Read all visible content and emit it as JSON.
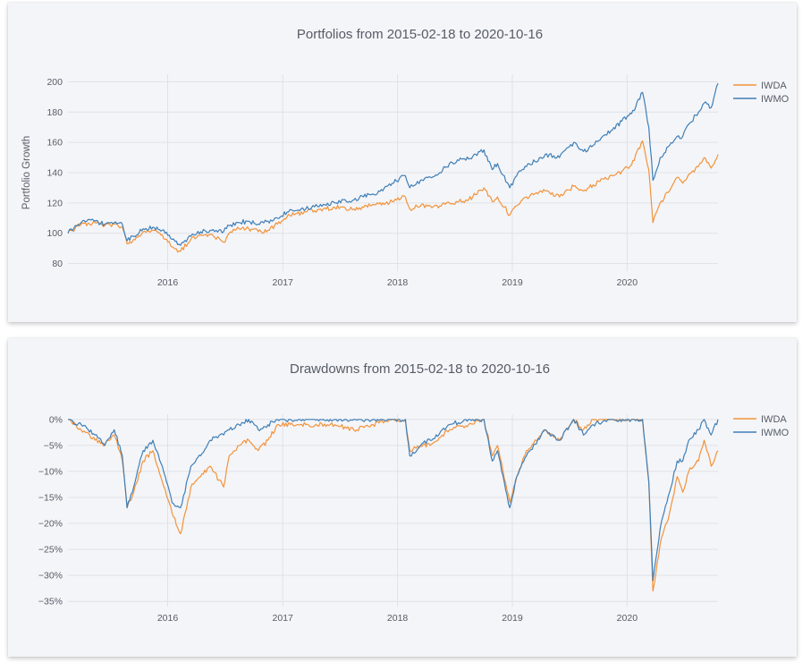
{
  "colors": {
    "IWDA": "#f2933a",
    "IWMO": "#3f7fb7",
    "card_bg": "#f4f5f8",
    "grid": "#dfe2e8",
    "text": "#555b66"
  },
  "chart_data": [
    {
      "type": "line",
      "title": "Portfolios from 2015-02-18 to 2020-10-16",
      "xlabel": "",
      "ylabel": "Portfolio Growth",
      "x_axis_type": "date",
      "xlim": [
        "2015-02-18",
        "2020-10-16"
      ],
      "ylim": [
        75,
        205
      ],
      "x_ticks": [
        "2016",
        "2017",
        "2018",
        "2019",
        "2020"
      ],
      "y_ticks": [
        80,
        100,
        120,
        140,
        160,
        180,
        200
      ],
      "grid": true,
      "legend": "top-right",
      "series": [
        {
          "name": "IWDA",
          "x": [
            "2015-02-18",
            "2015-04-01",
            "2015-05-15",
            "2015-06-15",
            "2015-07-15",
            "2015-08-10",
            "2015-08-25",
            "2015-09-15",
            "2015-10-15",
            "2015-11-15",
            "2015-12-15",
            "2016-01-15",
            "2016-02-11",
            "2016-03-15",
            "2016-04-15",
            "2016-05-15",
            "2016-06-27",
            "2016-07-15",
            "2016-08-15",
            "2016-09-15",
            "2016-10-15",
            "2016-11-15",
            "2016-12-15",
            "2017-01-15",
            "2017-02-15",
            "2017-03-15",
            "2017-05-01",
            "2017-06-15",
            "2017-08-15",
            "2017-09-15",
            "2017-10-15",
            "2017-11-15",
            "2017-12-15",
            "2018-01-26",
            "2018-02-09",
            "2018-03-15",
            "2018-04-15",
            "2018-05-15",
            "2018-06-15",
            "2018-07-15",
            "2018-08-15",
            "2018-10-03",
            "2018-10-29",
            "2018-11-15",
            "2018-12-24",
            "2019-01-15",
            "2019-02-15",
            "2019-04-15",
            "2019-05-31",
            "2019-07-15",
            "2019-08-15",
            "2019-09-15",
            "2019-10-15",
            "2019-11-15",
            "2019-12-15",
            "2020-01-15",
            "2020-02-19",
            "2020-03-10",
            "2020-03-23",
            "2020-04-15",
            "2020-05-15",
            "2020-06-08",
            "2020-06-26",
            "2020-07-15",
            "2020-08-15",
            "2020-09-02",
            "2020-09-24",
            "2020-10-16"
          ],
          "y": [
            100,
            106,
            107,
            105,
            106,
            104,
            93,
            96,
            101,
            102,
            99,
            91,
            88,
            96,
            99,
            99,
            94,
            100,
            103,
            103,
            101,
            102,
            106,
            111,
            113,
            114,
            116,
            117,
            116,
            117,
            119,
            120,
            121,
            124,
            116,
            118,
            118,
            118,
            120,
            121,
            122,
            130,
            121,
            124,
            112,
            118,
            124,
            128,
            124,
            131,
            128,
            132,
            136,
            138,
            141,
            145,
            161,
            142,
            107,
            120,
            128,
            137,
            133,
            139,
            144,
            150,
            143,
            152
          ]
        },
        {
          "name": "IWMO",
          "x": [
            "2015-02-18",
            "2015-04-01",
            "2015-05-15",
            "2015-06-15",
            "2015-07-15",
            "2015-08-10",
            "2015-08-25",
            "2015-09-15",
            "2015-10-15",
            "2015-11-15",
            "2015-12-15",
            "2016-01-15",
            "2016-02-11",
            "2016-03-15",
            "2016-04-15",
            "2016-05-15",
            "2016-06-27",
            "2016-07-15",
            "2016-08-15",
            "2016-09-15",
            "2016-10-15",
            "2016-11-15",
            "2016-12-15",
            "2017-01-15",
            "2017-02-15",
            "2017-03-15",
            "2017-05-01",
            "2017-06-15",
            "2017-08-15",
            "2017-09-15",
            "2017-10-15",
            "2017-11-15",
            "2017-12-15",
            "2018-01-26",
            "2018-02-09",
            "2018-03-15",
            "2018-04-15",
            "2018-05-15",
            "2018-06-15",
            "2018-07-15",
            "2018-08-15",
            "2018-10-03",
            "2018-10-29",
            "2018-11-15",
            "2018-12-24",
            "2019-01-15",
            "2019-02-15",
            "2019-04-15",
            "2019-05-31",
            "2019-07-15",
            "2019-08-15",
            "2019-09-15",
            "2019-10-15",
            "2019-11-15",
            "2019-12-15",
            "2020-01-15",
            "2020-02-19",
            "2020-03-10",
            "2020-03-23",
            "2020-04-15",
            "2020-05-15",
            "2020-06-08",
            "2020-06-26",
            "2020-07-15",
            "2020-08-15",
            "2020-09-02",
            "2020-09-24",
            "2020-10-16"
          ],
          "y": [
            100,
            107,
            108,
            106,
            107,
            106,
            95,
            98,
            103,
            104,
            102,
            96,
            92,
            98,
            101,
            102,
            101,
            105,
            107,
            108,
            106,
            108,
            110,
            114,
            115,
            116,
            119,
            120,
            122,
            124,
            126,
            128,
            133,
            138,
            130,
            135,
            137,
            140,
            146,
            148,
            149,
            155,
            142,
            146,
            130,
            138,
            144,
            152,
            150,
            160,
            154,
            158,
            164,
            168,
            174,
            179,
            193,
            170,
            135,
            150,
            158,
            164,
            164,
            172,
            180,
            186,
            183,
            199
          ]
        }
      ]
    },
    {
      "type": "line",
      "title": "Drawdowns from 2015-02-18 to 2020-10-16",
      "xlabel": "",
      "ylabel": "",
      "x_axis_type": "date",
      "xlim": [
        "2015-02-18",
        "2020-10-16"
      ],
      "ylim": [
        -36,
        1
      ],
      "y_unit": "percent",
      "x_ticks": [
        "2016",
        "2017",
        "2018",
        "2019",
        "2020"
      ],
      "y_ticks": [
        0,
        -5,
        -10,
        -15,
        -20,
        -25,
        -30,
        -35
      ],
      "y_tick_labels": [
        "0%",
        "−5%",
        "−10%",
        "−15%",
        "−20%",
        "−25%",
        "−30%",
        "−35%"
      ],
      "grid": true,
      "legend": "top-right",
      "series": [
        {
          "name": "IWDA",
          "x": [
            "2015-02-18",
            "2015-03-15",
            "2015-04-01",
            "2015-05-15",
            "2015-06-15",
            "2015-07-15",
            "2015-08-10",
            "2015-08-25",
            "2015-09-15",
            "2015-10-15",
            "2015-11-15",
            "2015-12-15",
            "2016-01-15",
            "2016-02-11",
            "2016-03-15",
            "2016-04-15",
            "2016-05-15",
            "2016-06-27",
            "2016-07-15",
            "2016-08-15",
            "2016-09-15",
            "2016-10-15",
            "2016-11-15",
            "2016-12-15",
            "2017-03-15",
            "2017-06-15",
            "2017-08-15",
            "2017-10-15",
            "2017-12-15",
            "2018-01-26",
            "2018-02-09",
            "2018-03-15",
            "2018-04-15",
            "2018-06-15",
            "2018-08-15",
            "2018-10-03",
            "2018-10-29",
            "2018-11-15",
            "2018-12-24",
            "2019-01-15",
            "2019-02-15",
            "2019-04-15",
            "2019-05-31",
            "2019-07-15",
            "2019-08-15",
            "2019-09-15",
            "2019-11-15",
            "2020-01-15",
            "2020-02-19",
            "2020-03-10",
            "2020-03-23",
            "2020-04-15",
            "2020-05-15",
            "2020-06-08",
            "2020-06-26",
            "2020-07-15",
            "2020-08-15",
            "2020-09-02",
            "2020-09-24",
            "2020-10-16"
          ],
          "y": [
            0,
            -1,
            -2,
            -4,
            -5,
            -3,
            -8,
            -17,
            -14,
            -8,
            -6,
            -12,
            -18,
            -22,
            -13,
            -11,
            -9,
            -13,
            -7,
            -5,
            -4,
            -6,
            -4,
            -1,
            -1,
            -1,
            -2,
            -1,
            0,
            0,
            -6,
            -5,
            -5,
            -2,
            -1,
            0,
            -7,
            -5,
            -16,
            -11,
            -6,
            -2,
            -4,
            0,
            -2,
            0,
            0,
            0,
            0,
            -12,
            -33,
            -24,
            -18,
            -11,
            -14,
            -10,
            -8,
            -4,
            -9,
            -6
          ]
        },
        {
          "name": "IWMO",
          "x": [
            "2015-02-18",
            "2015-03-15",
            "2015-04-01",
            "2015-05-15",
            "2015-06-15",
            "2015-07-15",
            "2015-08-10",
            "2015-08-25",
            "2015-09-15",
            "2015-10-15",
            "2015-11-15",
            "2015-12-15",
            "2016-01-15",
            "2016-02-11",
            "2016-03-15",
            "2016-04-15",
            "2016-05-15",
            "2016-06-27",
            "2016-07-15",
            "2016-08-15",
            "2016-09-15",
            "2016-10-15",
            "2016-11-15",
            "2016-12-15",
            "2017-03-15",
            "2017-06-15",
            "2017-08-15",
            "2017-10-15",
            "2017-12-15",
            "2018-01-26",
            "2018-02-09",
            "2018-03-15",
            "2018-04-15",
            "2018-06-15",
            "2018-08-15",
            "2018-10-03",
            "2018-10-29",
            "2018-11-15",
            "2018-12-24",
            "2019-01-15",
            "2019-02-15",
            "2019-04-15",
            "2019-05-31",
            "2019-07-15",
            "2019-08-15",
            "2019-09-15",
            "2019-11-15",
            "2020-01-15",
            "2020-02-19",
            "2020-03-10",
            "2020-03-23",
            "2020-04-15",
            "2020-05-15",
            "2020-06-08",
            "2020-06-26",
            "2020-07-15",
            "2020-08-15",
            "2020-09-02",
            "2020-09-24",
            "2020-10-16"
          ],
          "y": [
            0,
            -1,
            -1,
            -3,
            -5,
            -2,
            -7,
            -17,
            -13,
            -6,
            -4,
            -9,
            -16,
            -17,
            -9,
            -7,
            -4,
            -3,
            -2,
            -1,
            0,
            -2,
            -1,
            0,
            0,
            0,
            0,
            0,
            0,
            0,
            -7,
            -5,
            -4,
            -1,
            0,
            0,
            -8,
            -6,
            -17,
            -11,
            -7,
            -2,
            -4,
            0,
            -3,
            -1,
            0,
            0,
            0,
            -12,
            -31,
            -21,
            -14,
            -8,
            -8,
            -4,
            -2,
            0,
            -3,
            0
          ]
        }
      ]
    }
  ]
}
